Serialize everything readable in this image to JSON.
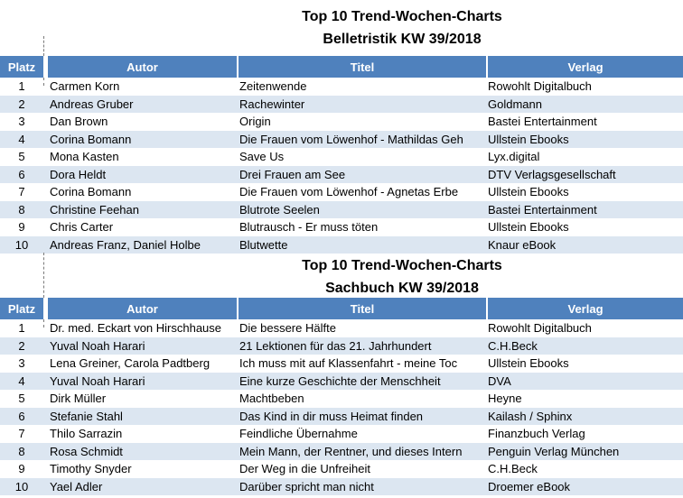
{
  "colors": {
    "header_bg": "#4F81BD",
    "header_text": "#FFFFFF",
    "alt_row_bg": "#DCE6F1",
    "row_bg": "#FFFFFF",
    "body_text": "#000000"
  },
  "tables": [
    {
      "title_line1": "Top 10 Trend-Wochen-Charts",
      "title_line2": "Belletristik KW 39/2018",
      "columns": [
        "Platz",
        "Autor",
        "Titel",
        "Verlag"
      ],
      "rows": [
        {
          "platz": "1",
          "autor": "Carmen Korn",
          "titel": "Zeitenwende",
          "verlag": "Rowohlt Digitalbuch"
        },
        {
          "platz": "2",
          "autor": "Andreas Gruber",
          "titel": "Rachewinter",
          "verlag": "Goldmann"
        },
        {
          "platz": "3",
          "autor": "Dan Brown",
          "titel": "Origin",
          "verlag": "Bastei Entertainment"
        },
        {
          "platz": "4",
          "autor": "Corina Bomann",
          "titel": "Die Frauen vom Löwenhof - Mathildas Geh",
          "verlag": "Ullstein Ebooks"
        },
        {
          "platz": "5",
          "autor": "Mona Kasten",
          "titel": "Save Us",
          "verlag": "Lyx.digital"
        },
        {
          "platz": "6",
          "autor": "Dora Heldt",
          "titel": "Drei Frauen am See",
          "verlag": "DTV Verlagsgesellschaft"
        },
        {
          "platz": "7",
          "autor": "Corina Bomann",
          "titel": "Die Frauen vom Löwenhof - Agnetas Erbe",
          "verlag": "Ullstein Ebooks"
        },
        {
          "platz": "8",
          "autor": "Christine Feehan",
          "titel": "Blutrote Seelen",
          "verlag": "Bastei Entertainment"
        },
        {
          "platz": "9",
          "autor": "Chris Carter",
          "titel": "Blutrausch - Er muss töten",
          "verlag": "Ullstein Ebooks"
        },
        {
          "platz": "10",
          "autor": "Andreas Franz, Daniel Holbe",
          "titel": "Blutwette",
          "verlag": "Knaur eBook"
        }
      ]
    },
    {
      "title_line1": "Top 10 Trend-Wochen-Charts",
      "title_line2": "Sachbuch KW 39/2018",
      "columns": [
        "Platz",
        "Autor",
        "Titel",
        "Verlag"
      ],
      "rows": [
        {
          "platz": "1",
          "autor": "Dr. med. Eckart von Hirschhause",
          "titel": "Die bessere Hälfte",
          "verlag": "Rowohlt Digitalbuch"
        },
        {
          "platz": "2",
          "autor": "Yuval Noah Harari",
          "titel": "21 Lektionen für das 21. Jahrhundert",
          "verlag": "C.H.Beck"
        },
        {
          "platz": "3",
          "autor": "Lena Greiner, Carola Padtberg",
          "titel": "Ich muss mit auf Klassenfahrt - meine Toc",
          "verlag": "Ullstein Ebooks"
        },
        {
          "platz": "4",
          "autor": "Yuval Noah Harari",
          "titel": "Eine kurze Geschichte der Menschheit",
          "verlag": "DVA"
        },
        {
          "platz": "5",
          "autor": "Dirk Müller",
          "titel": "Machtbeben",
          "verlag": "Heyne"
        },
        {
          "platz": "6",
          "autor": "Stefanie Stahl",
          "titel": "Das Kind in dir muss Heimat finden",
          "verlag": "Kailash / Sphinx"
        },
        {
          "platz": "7",
          "autor": "Thilo Sarrazin",
          "titel": "Feindliche Übernahme",
          "verlag": "Finanzbuch Verlag"
        },
        {
          "platz": "8",
          "autor": "Rosa Schmidt",
          "titel": "Mein Mann, der Rentner, und dieses Intern",
          "verlag": "Penguin Verlag München"
        },
        {
          "platz": "9",
          "autor": "Timothy Snyder",
          "titel": "Der Weg in die Unfreiheit",
          "verlag": "C.H.Beck"
        },
        {
          "platz": "10",
          "autor": "Yael Adler",
          "titel": "Darüber spricht man nicht",
          "verlag": "Droemer eBook"
        }
      ]
    }
  ]
}
